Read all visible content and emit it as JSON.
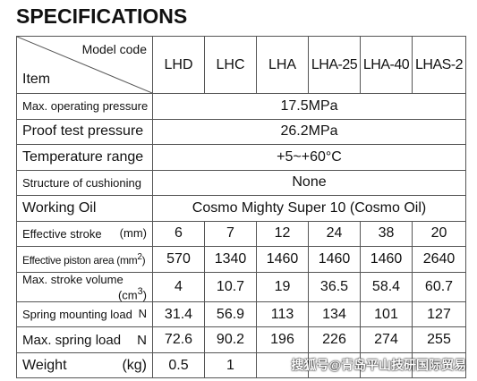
{
  "title": "SPECIFICATIONS",
  "header": {
    "model_code_label": "Model code",
    "item_label": "Item",
    "models": [
      "LHD",
      "LHC",
      "LHA",
      "LHA-25",
      "LHA-40",
      "LHAS-2"
    ]
  },
  "rows": {
    "max_pressure": {
      "label": "Max. operating pressure",
      "value": "17.5MPa"
    },
    "proof_pressure": {
      "label": "Proof test pressure",
      "value": "26.2MPa"
    },
    "temperature": {
      "label": "Temperature range",
      "value": "+5~+60°C"
    },
    "cushioning": {
      "label": "Structure of cushioning",
      "value": "None"
    },
    "oil": {
      "label": "Working Oil",
      "value": "Cosmo Mighty Super 10 (Cosmo Oil)"
    },
    "stroke": {
      "label": "Effective stroke",
      "unit": "(mm)",
      "values": [
        "6",
        "7",
        "12",
        "24",
        "38",
        "20"
      ]
    },
    "piston_area": {
      "label": "Effective piston area",
      "unit_pre": "(mm",
      "unit_sup": "2",
      "unit_post": ")",
      "values": [
        "570",
        "1340",
        "1460",
        "1460",
        "1460",
        "2640"
      ]
    },
    "stroke_volume": {
      "label": "Max. stroke volume",
      "unit_pre": "(cm",
      "unit_sup": "3",
      "unit_post": ")",
      "values": [
        "4",
        "10.7",
        "19",
        "36.5",
        "58.4",
        "60.7"
      ]
    },
    "spring_mount": {
      "label": "Spring mounting load",
      "unit": "N",
      "values": [
        "31.4",
        "56.9",
        "113",
        "134",
        "101",
        "127"
      ]
    },
    "spring_max": {
      "label": "Max. spring load",
      "unit": "N",
      "values": [
        "72.6",
        "90.2",
        "196",
        "226",
        "274",
        "255"
      ]
    },
    "weight": {
      "label": "Weight",
      "unit": "(kg)",
      "values": [
        "0.5",
        "1",
        "",
        "",
        "",
        ""
      ]
    }
  },
  "watermark": "搜狐号@青岛平山技研国际贸易"
}
